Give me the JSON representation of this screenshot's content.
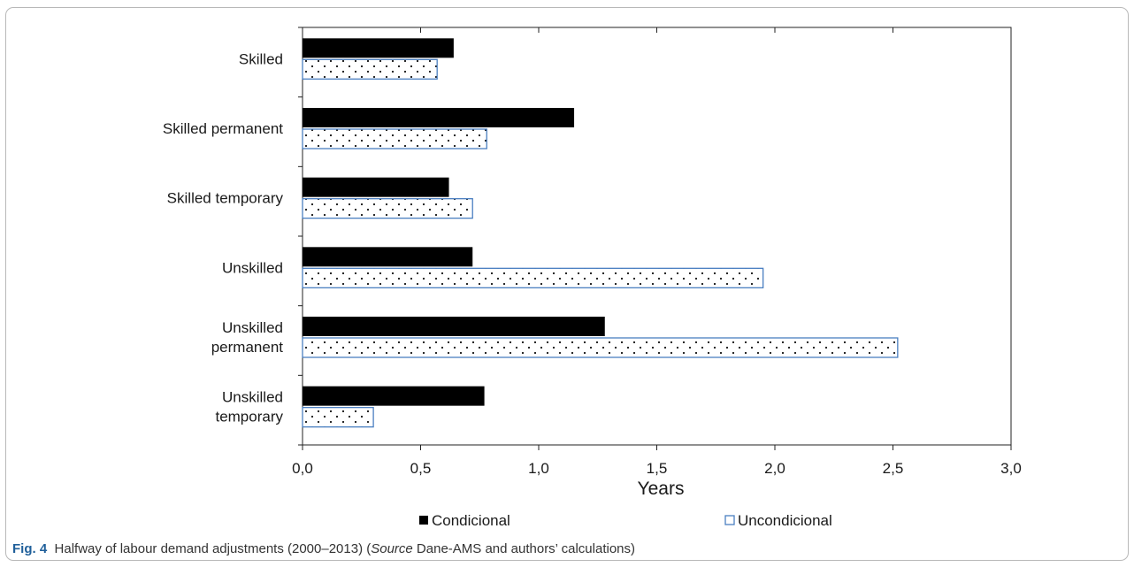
{
  "chart_data": {
    "type": "bar",
    "orientation": "horizontal",
    "categories": [
      [
        "Skilled"
      ],
      [
        "Skilled permanent"
      ],
      [
        "Skilled temporary"
      ],
      [
        "Unskilled"
      ],
      [
        "Unskilled",
        "permanent"
      ],
      [
        "Unskilled",
        "temporary"
      ]
    ],
    "series": [
      {
        "name": "Condicional",
        "values": [
          0.64,
          1.15,
          0.62,
          0.72,
          1.28,
          0.77
        ],
        "color": "#000000"
      },
      {
        "name": "Uncondicional",
        "values": [
          0.57,
          0.78,
          0.72,
          1.95,
          2.52,
          0.3
        ],
        "color": "#4a7fc1",
        "pattern": "dots"
      }
    ],
    "xlabel": "Years",
    "xlim": [
      0,
      3.0
    ],
    "xticks": [
      "0,0",
      "0,5",
      "1,0",
      "1,5",
      "2,0",
      "2,5",
      "3,0"
    ],
    "grid": false,
    "legend_position": "bottom"
  },
  "caption": {
    "fig": "Fig. 4",
    "text_before": "Halfway of labour demand adjustments (2000–2013) (",
    "source_label": "Source",
    "text_after": " Dane-AMS and authors’ calculations)"
  }
}
